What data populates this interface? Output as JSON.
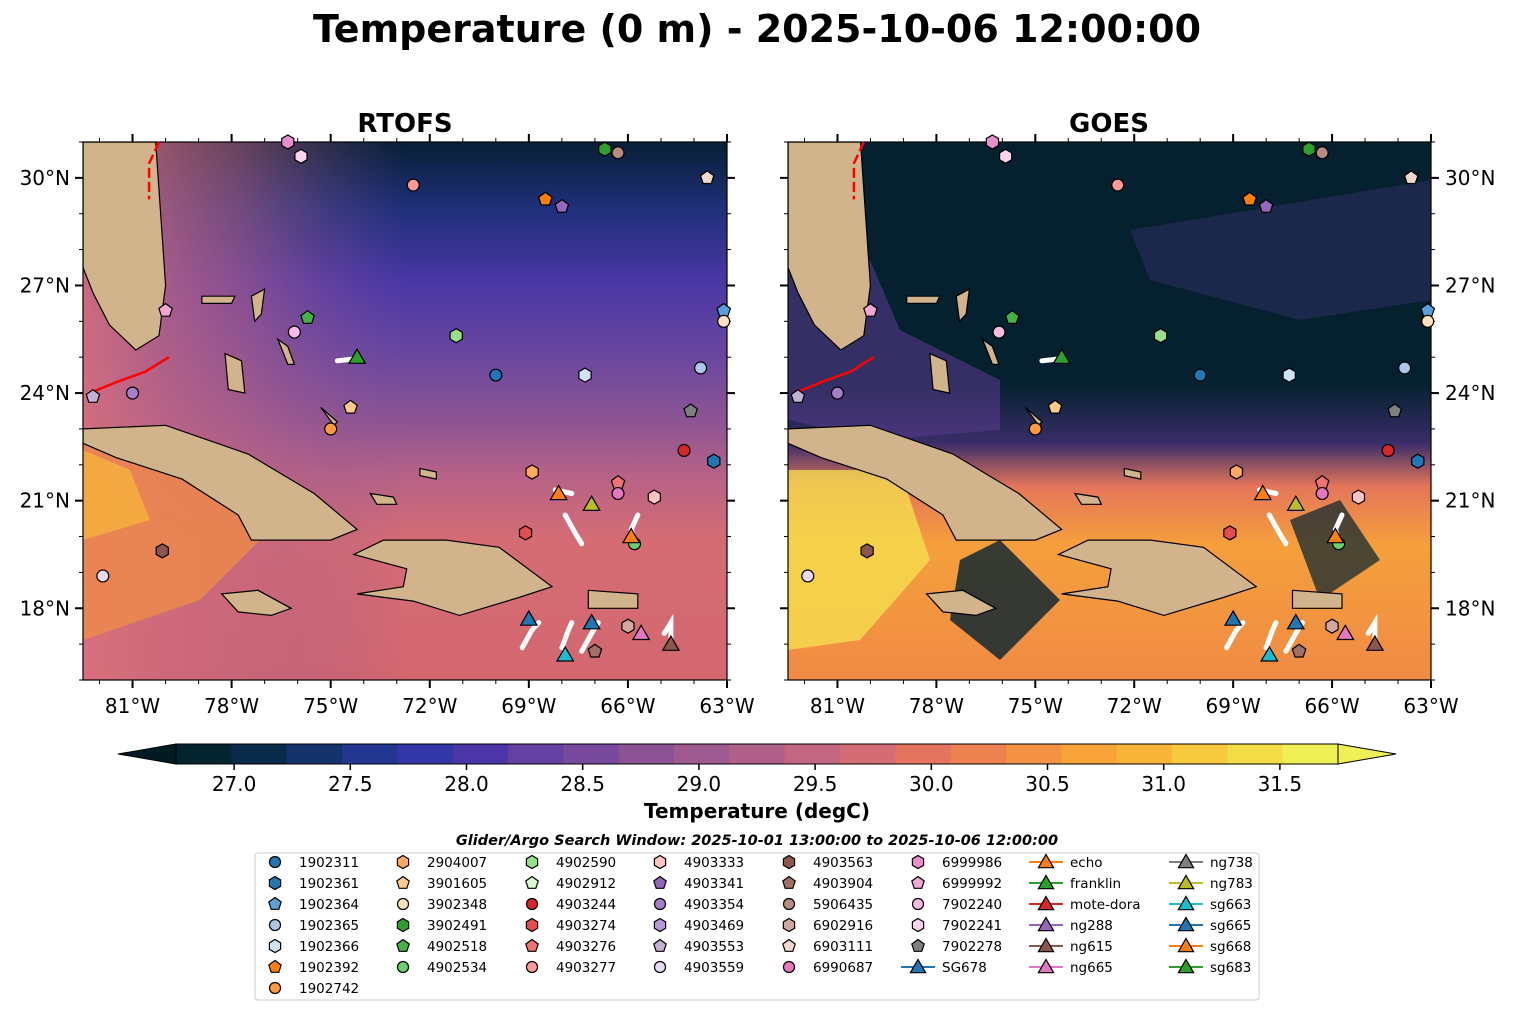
{
  "title": "Temperature (0 m) - 2025-10-06 12:00:00",
  "panels": [
    {
      "title": "RTOFS"
    },
    {
      "title": "GOES"
    }
  ],
  "axes": {
    "x_ticks": [
      "81°W",
      "78°W",
      "75°W",
      "72°W",
      "69°W",
      "66°W",
      "63°W"
    ],
    "y_ticks": [
      "30°N",
      "27°N",
      "24°N",
      "21°N",
      "18°N"
    ]
  },
  "colorbar": {
    "label": "Temperature (degC)",
    "ticks": [
      "27.0",
      "27.5",
      "28.0",
      "28.5",
      "29.0",
      "29.5",
      "30.0",
      "30.5",
      "31.0",
      "31.5"
    ],
    "colors": [
      "#03232f",
      "#0a2a49",
      "#14326b",
      "#22368f",
      "#3337a8",
      "#4b36a8",
      "#6440a3",
      "#784a9c",
      "#8b5396",
      "#9e5a8f",
      "#b1608a",
      "#c36682",
      "#d46c75",
      "#e3745f",
      "#ed8150",
      "#f49143",
      "#f8a33a",
      "#f9b53a",
      "#f7c93f",
      "#f3dd47",
      "#eef056"
    ]
  },
  "legend": {
    "title": "Glider/Argo Search Window: 2025-10-01 13:00:00 to 2025-10-06 12:00:00",
    "columns": [
      [
        {
          "label": "1902311",
          "marker": "circle",
          "color": "#1f77b4"
        },
        {
          "label": "1902361",
          "marker": "hexagon",
          "color": "#1f77b4"
        },
        {
          "label": "1902364",
          "marker": "pentagon",
          "color": "#5aa0d8"
        },
        {
          "label": "1902365",
          "marker": "circle",
          "color": "#aec7e8"
        },
        {
          "label": "1902366",
          "marker": "hexagon",
          "color": "#cfe3f5"
        },
        {
          "label": "1902392",
          "marker": "pentagon",
          "color": "#ff7f0e"
        },
        {
          "label": "1902742",
          "marker": "circle",
          "color": "#ff983e"
        }
      ],
      [
        {
          "label": "2904007",
          "marker": "hexagon",
          "color": "#ffa95e"
        },
        {
          "label": "3901605",
          "marker": "pentagon",
          "color": "#ffc98e"
        },
        {
          "label": "3902348",
          "marker": "circle",
          "color": "#ffe0bd"
        },
        {
          "label": "3902491",
          "marker": "hexagon",
          "color": "#2ca02c"
        },
        {
          "label": "4902518",
          "marker": "pentagon",
          "color": "#44b244"
        },
        {
          "label": "4902534",
          "marker": "circle",
          "color": "#6bcf6b"
        }
      ],
      [
        {
          "label": "4902590",
          "marker": "hexagon",
          "color": "#98df8a"
        },
        {
          "label": "4902912",
          "marker": "pentagon",
          "color": "#d7f7cf"
        },
        {
          "label": "4903244",
          "marker": "circle",
          "color": "#d62728"
        },
        {
          "label": "4903274",
          "marker": "hexagon",
          "color": "#e34d4e"
        },
        {
          "label": "4903276",
          "marker": "pentagon",
          "color": "#f07474"
        },
        {
          "label": "4903277",
          "marker": "circle",
          "color": "#ff9896"
        }
      ],
      [
        {
          "label": "4903333",
          "marker": "hexagon",
          "color": "#ffc4c0"
        },
        {
          "label": "4903341",
          "marker": "pentagon",
          "color": "#9467bd"
        },
        {
          "label": "4903354",
          "marker": "circle",
          "color": "#a57fcb"
        },
        {
          "label": "4903469",
          "marker": "hexagon",
          "color": "#b797d8"
        },
        {
          "label": "4903553",
          "marker": "pentagon",
          "color": "#c5b0d5"
        },
        {
          "label": "4903559",
          "marker": "circle",
          "color": "#e6d9f5"
        }
      ],
      [
        {
          "label": "4903563",
          "marker": "hexagon",
          "color": "#8c564b"
        },
        {
          "label": "4903904",
          "marker": "pentagon",
          "color": "#a27066"
        },
        {
          "label": "5906435",
          "marker": "circle",
          "color": "#b88a80"
        },
        {
          "label": "6902916",
          "marker": "hexagon",
          "color": "#d2a79f"
        },
        {
          "label": "6903111",
          "marker": "pentagon",
          "color": "#f3d8cf"
        },
        {
          "label": "6990687",
          "marker": "circle",
          "color": "#e377c2"
        }
      ],
      [
        {
          "label": "6999986",
          "marker": "hexagon",
          "color": "#e88fcc"
        },
        {
          "label": "6999992",
          "marker": "pentagon",
          "color": "#f0a6d6"
        },
        {
          "label": "7902240",
          "marker": "circle",
          "color": "#f7bce3"
        },
        {
          "label": "7902241",
          "marker": "hexagon",
          "color": "#fbd3ec"
        },
        {
          "label": "7902278",
          "marker": "pentagon",
          "color": "#7f7f7f"
        },
        {
          "label": "SG678",
          "marker": "triangle",
          "color": "#1f77b4",
          "line": true
        }
      ],
      [
        {
          "label": "echo",
          "marker": "triangle",
          "color": "#ff7f0e",
          "line": true
        },
        {
          "label": "franklin",
          "marker": "triangle",
          "color": "#2ca02c",
          "line": true
        },
        {
          "label": "mote-dora",
          "marker": "triangle",
          "color": "#d62728",
          "line": true
        },
        {
          "label": "ng288",
          "marker": "triangle",
          "color": "#9467bd",
          "line": true
        },
        {
          "label": "ng615",
          "marker": "triangle",
          "color": "#8c564b",
          "line": true
        },
        {
          "label": "ng665",
          "marker": "triangle",
          "color": "#e377c2",
          "line": true
        }
      ],
      [
        {
          "label": "ng738",
          "marker": "triangle",
          "color": "#7f7f7f",
          "line": true
        },
        {
          "label": "ng783",
          "marker": "triangle",
          "color": "#bcbd22",
          "line": true
        },
        {
          "label": "sg663",
          "marker": "triangle",
          "color": "#17becf",
          "line": true
        },
        {
          "label": "sg665",
          "marker": "triangle",
          "color": "#1f77b4",
          "line": true
        },
        {
          "label": "sg668",
          "marker": "triangle",
          "color": "#ff7f0e",
          "line": true
        },
        {
          "label": "sg683",
          "marker": "triangle",
          "color": "#2ca02c",
          "line": true
        }
      ]
    ]
  },
  "chart_data": {
    "type": "heatmap",
    "title": "Temperature (0 m) - 2025-10-06 12:00:00",
    "variable": "Temperature (degC)",
    "colorbar_range": [
      26.75,
      31.75
    ],
    "colorbar_extend": "both",
    "lon_range": [
      -82.5,
      -63
    ],
    "lat_range": [
      16,
      31
    ],
    "panels": [
      "RTOFS",
      "GOES"
    ],
    "platforms": [
      {
        "id": "1902311",
        "lon": -70.0,
        "lat": 24.5
      },
      {
        "id": "1902361",
        "lon": -63.4,
        "lat": 22.1
      },
      {
        "id": "1902364",
        "lon": -63.1,
        "lat": 26.3
      },
      {
        "id": "1902365",
        "lon": -63.8,
        "lat": 24.7
      },
      {
        "id": "1902366",
        "lon": -67.3,
        "lat": 24.5
      },
      {
        "id": "1902392",
        "lon": -68.5,
        "lat": 29.4
      },
      {
        "id": "1902742",
        "lon": -75.0,
        "lat": 23.0
      },
      {
        "id": "2904007",
        "lon": -68.9,
        "lat": 21.8
      },
      {
        "id": "3901605",
        "lon": -74.4,
        "lat": 23.6
      },
      {
        "id": "3902348",
        "lon": -63.1,
        "lat": 26.0
      },
      {
        "id": "3902491",
        "lon": -66.7,
        "lat": 30.8
      },
      {
        "id": "4902518",
        "lon": -75.7,
        "lat": 26.1
      },
      {
        "id": "4902534",
        "lon": -65.8,
        "lat": 19.8
      },
      {
        "id": "4902590",
        "lon": -71.2,
        "lat": 25.6
      },
      {
        "id": "4903244",
        "lon": -64.3,
        "lat": 22.4
      },
      {
        "id": "4903274",
        "lon": -69.1,
        "lat": 20.1
      },
      {
        "id": "4903276",
        "lon": -66.3,
        "lat": 21.5
      },
      {
        "id": "4903277",
        "lon": -72.5,
        "lat": 29.8
      },
      {
        "id": "4903333",
        "lon": -65.2,
        "lat": 21.1
      },
      {
        "id": "4903341",
        "lon": -68.0,
        "lat": 29.2
      },
      {
        "id": "4903354",
        "lon": -81.0,
        "lat": 24.0
      },
      {
        "id": "4903553",
        "lon": -82.2,
        "lat": 23.9
      },
      {
        "id": "4903559",
        "lon": -81.9,
        "lat": 18.9
      },
      {
        "id": "4903563",
        "lon": -80.1,
        "lat": 19.6
      },
      {
        "id": "4903904",
        "lon": -67.0,
        "lat": 16.8
      },
      {
        "id": "5906435",
        "lon": -66.3,
        "lat": 30.7
      },
      {
        "id": "6902916",
        "lon": -66.0,
        "lat": 17.5
      },
      {
        "id": "6903111",
        "lon": -63.6,
        "lat": 30.0
      },
      {
        "id": "6990687",
        "lon": -66.3,
        "lat": 21.2
      },
      {
        "id": "6999986",
        "lon": -76.3,
        "lat": 31.0
      },
      {
        "id": "6999992",
        "lon": -80.0,
        "lat": 26.3
      },
      {
        "id": "7902240",
        "lon": -76.1,
        "lat": 25.7
      },
      {
        "id": "7902241",
        "lon": -75.9,
        "lat": 30.6
      },
      {
        "id": "7902278",
        "lon": -64.1,
        "lat": 23.5
      },
      {
        "id": "SG678",
        "lon": -69.0,
        "lat": 17.7
      },
      {
        "id": "echo",
        "lon": -68.1,
        "lat": 21.2
      },
      {
        "id": "franklin",
        "lon": -74.2,
        "lat": 25.0
      },
      {
        "id": "ng665",
        "lon": -65.6,
        "lat": 17.3
      },
      {
        "id": "ng615",
        "lon": -64.7,
        "lat": 17.0
      },
      {
        "id": "ng783",
        "lon": -67.1,
        "lat": 20.9
      },
      {
        "id": "sg663",
        "lon": -67.9,
        "lat": 16.7
      },
      {
        "id": "sg665",
        "lon": -67.1,
        "lat": 17.6
      },
      {
        "id": "sg668",
        "lon": -65.9,
        "lat": 20.0
      }
    ]
  }
}
